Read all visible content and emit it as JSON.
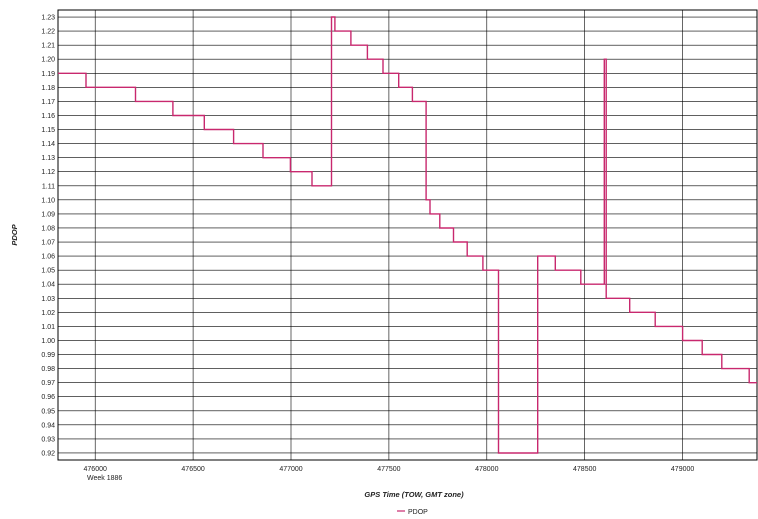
{
  "chart_data": {
    "type": "line",
    "step": true,
    "xlabel": "GPS Time (TOW, GMT zone)",
    "ylabel": "PDOP",
    "x_sub_label": "Week 1886",
    "xlim": [
      475810,
      479380
    ],
    "ylim": [
      0.915,
      1.235
    ],
    "x_ticks": [
      476000,
      476500,
      477000,
      477500,
      478000,
      478500,
      479000
    ],
    "y_ticks": [
      0.92,
      0.93,
      0.94,
      0.95,
      0.96,
      0.97,
      0.98,
      0.99,
      1.0,
      1.01,
      1.02,
      1.03,
      1.04,
      1.05,
      1.06,
      1.07,
      1.08,
      1.09,
      1.1,
      1.11,
      1.12,
      1.13,
      1.14,
      1.15,
      1.16,
      1.17,
      1.18,
      1.19,
      1.2,
      1.21,
      1.22,
      1.23
    ],
    "grid": true,
    "legend": "bottom-center",
    "line_color": "#c8286e",
    "series": [
      {
        "name": "PDOP",
        "x": [
          475810,
          475953,
          476206,
          476397,
          476557,
          476707,
          476857,
          476997,
          477107,
          477207,
          477224,
          477306,
          477390,
          477470,
          477550,
          477620,
          477690,
          477710,
          477760,
          477830,
          477900,
          477980,
          478060,
          478150,
          478170,
          478260,
          478270,
          478350,
          478480,
          478600,
          478605,
          478610,
          478730,
          478860,
          479000,
          479100,
          479200,
          479340,
          479380
        ],
        "y": [
          1.19,
          1.18,
          1.17,
          1.16,
          1.15,
          1.14,
          1.13,
          1.12,
          1.11,
          1.23,
          1.22,
          1.21,
          1.2,
          1.19,
          1.18,
          1.17,
          1.1,
          1.09,
          1.08,
          1.07,
          1.06,
          1.05,
          0.92,
          0.92,
          0.92,
          1.06,
          1.06,
          1.05,
          1.04,
          1.2,
          1.2,
          1.03,
          1.02,
          1.01,
          1.0,
          0.99,
          0.98,
          0.97,
          0.97
        ]
      }
    ]
  }
}
